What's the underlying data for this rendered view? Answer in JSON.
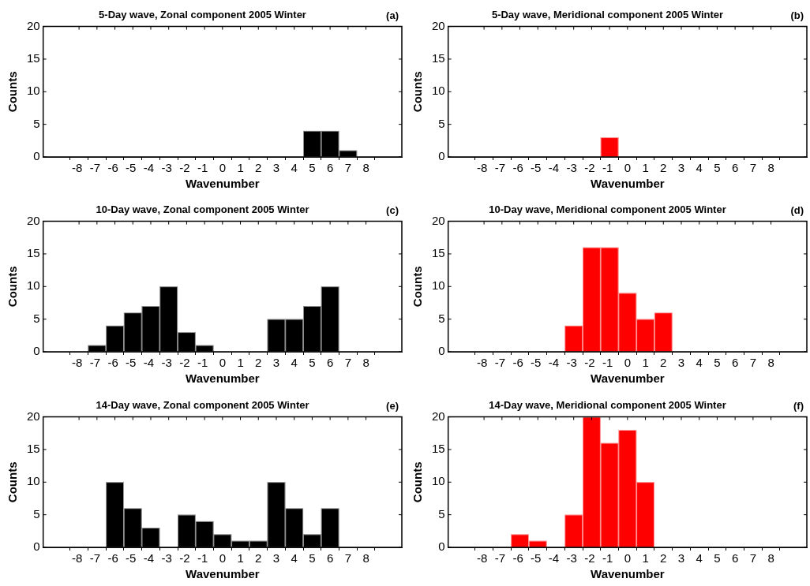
{
  "chart_data": [
    {
      "type": "histogram",
      "title": "5-Day wave, Zonal component 2005 Winter",
      "annotations": [
        "(a)"
      ],
      "xlabel": "Wavenumber",
      "ylabel": "Counts",
      "bins": [
        -8.5,
        -7.5,
        -6.5,
        -5.5,
        -4.5,
        -3.5,
        -2.5,
        -1.5,
        -0.5,
        0.5,
        1.5,
        2.5,
        3.5,
        4.5,
        5.5,
        6.5,
        7.5,
        8.5
      ],
      "values": [
        0,
        0,
        0,
        0,
        0,
        0,
        0,
        0,
        0,
        0,
        0,
        0,
        0,
        4,
        4,
        1,
        0
      ],
      "color": "#000000",
      "xlim": [
        -10,
        10
      ],
      "xticks": [
        -8,
        -7,
        -6,
        -5,
        -4,
        -3,
        -2,
        -1,
        0,
        1,
        2,
        3,
        4,
        5,
        6,
        7,
        8
      ],
      "ylim": [
        0,
        20
      ],
      "yticks": [
        0,
        5,
        10,
        15,
        20
      ]
    },
    {
      "type": "histogram",
      "title": "5-Day wave, Meridional component 2005 Winter",
      "annotations": [
        "(b)"
      ],
      "xlabel": "Wavenumber",
      "ylabel": "Counts",
      "bins": [
        -8.5,
        -7.5,
        -6.5,
        -5.5,
        -4.5,
        -3.5,
        -2.5,
        -1.5,
        -0.5,
        0.5,
        1.5,
        2.5,
        3.5,
        4.5,
        5.5,
        6.5,
        7.5,
        8.5
      ],
      "values": [
        0,
        0,
        0,
        0,
        0,
        0,
        0,
        3,
        0,
        0,
        0,
        0,
        0,
        0,
        0,
        0,
        0
      ],
      "color": "#ff0000",
      "xlim": [
        -10,
        10
      ],
      "xticks": [
        -8,
        -7,
        -6,
        -5,
        -4,
        -3,
        -2,
        -1,
        0,
        1,
        2,
        3,
        4,
        5,
        6,
        7,
        8
      ],
      "ylim": [
        0,
        20
      ],
      "yticks": [
        0,
        5,
        10,
        15,
        20
      ]
    },
    {
      "type": "histogram",
      "title": "10-Day wave, Zonal component 2005 Winter",
      "annotations": [
        "(c)"
      ],
      "xlabel": "Wavenumber",
      "ylabel": "Counts",
      "bins": [
        -8.5,
        -7.5,
        -6.5,
        -5.5,
        -4.5,
        -3.5,
        -2.5,
        -1.5,
        -0.5,
        0.5,
        1.5,
        2.5,
        3.5,
        4.5,
        5.5,
        6.5,
        7.5,
        8.5
      ],
      "values": [
        0,
        1,
        4,
        6,
        7,
        10,
        3,
        1,
        0,
        0,
        0,
        5,
        5,
        7,
        10,
        0,
        0
      ],
      "color": "#000000",
      "xlim": [
        -10,
        10
      ],
      "xticks": [
        -8,
        -7,
        -6,
        -5,
        -4,
        -3,
        -2,
        -1,
        0,
        1,
        2,
        3,
        4,
        5,
        6,
        7,
        8
      ],
      "ylim": [
        0,
        20
      ],
      "yticks": [
        0,
        5,
        10,
        15,
        20
      ]
    },
    {
      "type": "histogram",
      "title": "10-Day wave, Meridional component 2005 Winter",
      "annotations": [
        "(d)"
      ],
      "xlabel": "Wavenumber",
      "ylabel": "Counts",
      "bins": [
        -8.5,
        -7.5,
        -6.5,
        -5.5,
        -4.5,
        -3.5,
        -2.5,
        -1.5,
        -0.5,
        0.5,
        1.5,
        2.5,
        3.5,
        4.5,
        5.5,
        6.5,
        7.5,
        8.5
      ],
      "values": [
        0,
        0,
        0,
        0,
        0,
        4,
        16,
        16,
        9,
        5,
        6,
        0,
        0,
        0,
        0,
        0,
        0
      ],
      "color": "#ff0000",
      "xlim": [
        -10,
        10
      ],
      "xticks": [
        -8,
        -7,
        -6,
        -5,
        -4,
        -3,
        -2,
        -1,
        0,
        1,
        2,
        3,
        4,
        5,
        6,
        7,
        8
      ],
      "ylim": [
        0,
        20
      ],
      "yticks": [
        0,
        5,
        10,
        15,
        20
      ]
    },
    {
      "type": "histogram",
      "title": "14-Day wave, Zonal component 2005 Winter",
      "annotations": [
        "(e)"
      ],
      "xlabel": "Wavenumber",
      "ylabel": "Counts",
      "bins": [
        -8.5,
        -7.5,
        -6.5,
        -5.5,
        -4.5,
        -3.5,
        -2.5,
        -1.5,
        -0.5,
        0.5,
        1.5,
        2.5,
        3.5,
        4.5,
        5.5,
        6.5,
        7.5,
        8.5
      ],
      "values": [
        0,
        0,
        10,
        6,
        3,
        0,
        5,
        4,
        2,
        1,
        1,
        10,
        6,
        2,
        6,
        0,
        0
      ],
      "color": "#000000",
      "xlim": [
        -10,
        10
      ],
      "xticks": [
        -8,
        -7,
        -6,
        -5,
        -4,
        -3,
        -2,
        -1,
        0,
        1,
        2,
        3,
        4,
        5,
        6,
        7,
        8
      ],
      "ylim": [
        0,
        20
      ],
      "yticks": [
        0,
        5,
        10,
        15,
        20
      ]
    },
    {
      "type": "histogram",
      "title": "14-Day wave, Meridional component 2005 Winter",
      "annotations": [
        "(f)"
      ],
      "xlabel": "Wavenumber",
      "ylabel": "Counts",
      "bins": [
        -8.5,
        -7.5,
        -6.5,
        -5.5,
        -4.5,
        -3.5,
        -2.5,
        -1.5,
        -0.5,
        0.5,
        1.5,
        2.5,
        3.5,
        4.5,
        5.5,
        6.5,
        7.5,
        8.5
      ],
      "values": [
        0,
        0,
        2,
        1,
        0,
        5,
        20,
        16,
        18,
        10,
        0,
        0,
        0,
        0,
        0,
        0,
        0
      ],
      "color": "#ff0000",
      "xlim": [
        -10,
        10
      ],
      "xticks": [
        -8,
        -7,
        -6,
        -5,
        -4,
        -3,
        -2,
        -1,
        0,
        1,
        2,
        3,
        4,
        5,
        6,
        7,
        8
      ],
      "ylim": [
        0,
        20
      ],
      "yticks": [
        0,
        5,
        10,
        15,
        20
      ]
    }
  ]
}
